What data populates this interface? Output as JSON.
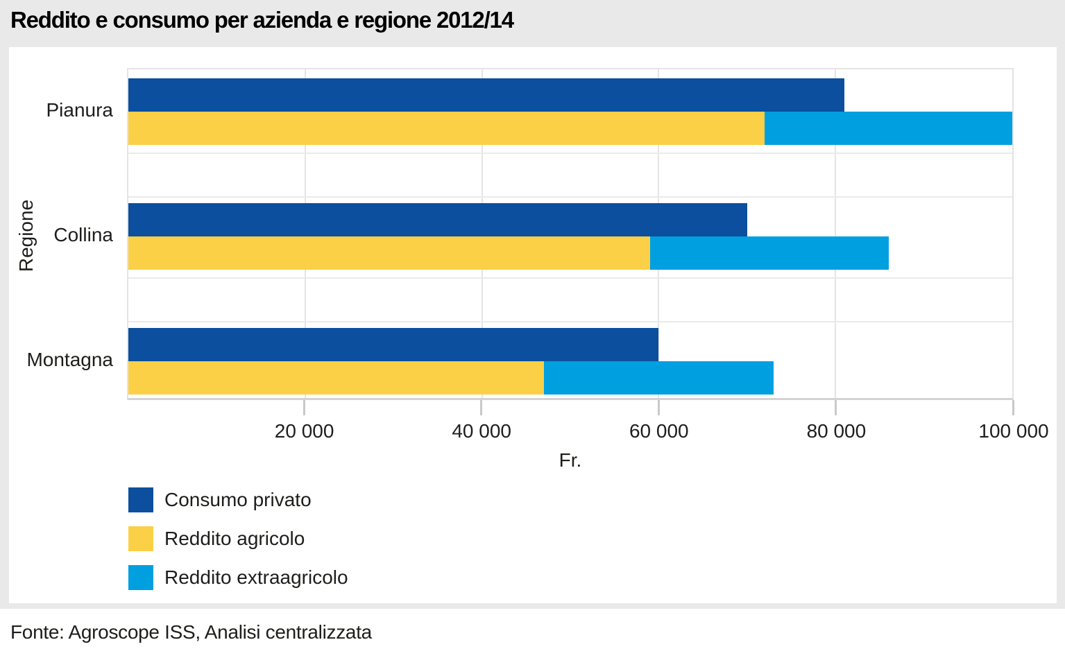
{
  "title": "Reddito e consumo per azienda e regione 2012/14",
  "source": "Fonte: Agroscope ISS, Analisi centralizzata",
  "colors": {
    "consumo_privato": "#0b4f9e",
    "reddito_agricolo": "#fbd046",
    "reddito_extraagricolo": "#009fe0",
    "figure_background": "#e9e9e9",
    "gridline": "#e4e4e4",
    "axis_line": "#d3d3d3",
    "text": "#1d1d1b"
  },
  "chart_data": {
    "type": "bar",
    "orientation": "horizontal",
    "title": "Reddito e consumo per azienda e regione 2012/14",
    "categories": [
      "Pianura",
      "Collina",
      "Montagna"
    ],
    "series": [
      {
        "name": "Consumo privato",
        "color": "#0b4f9e",
        "row": 0,
        "values": [
          81000,
          70000,
          60000
        ]
      },
      {
        "name": "Reddito agricolo",
        "color": "#fbd046",
        "row": 1,
        "values": [
          72000,
          59000,
          47000
        ]
      },
      {
        "name": "Reddito extraagricolo",
        "color": "#009fe0",
        "row": 1,
        "stacked_on": "Reddito agricolo",
        "values": [
          28000,
          27000,
          26000
        ]
      }
    ],
    "stacked_totals_row1": [
      100000,
      86000,
      73000
    ],
    "xlabel": "Fr.",
    "ylabel": "Regione",
    "xlim": [
      0,
      100000
    ],
    "xticks": [
      20000,
      40000,
      60000,
      80000,
      100000
    ],
    "xtick_labels": [
      "20 000",
      "40 000",
      "60 000",
      "80 000",
      "100 000"
    ],
    "grid": "vertical",
    "legend_position": "bottom-left"
  },
  "legend": {
    "items": [
      {
        "label": "Consumo privato",
        "color": "#0b4f9e"
      },
      {
        "label": "Reddito agricolo",
        "color": "#fbd046"
      },
      {
        "label": "Reddito extraagricolo",
        "color": "#009fe0"
      }
    ]
  }
}
